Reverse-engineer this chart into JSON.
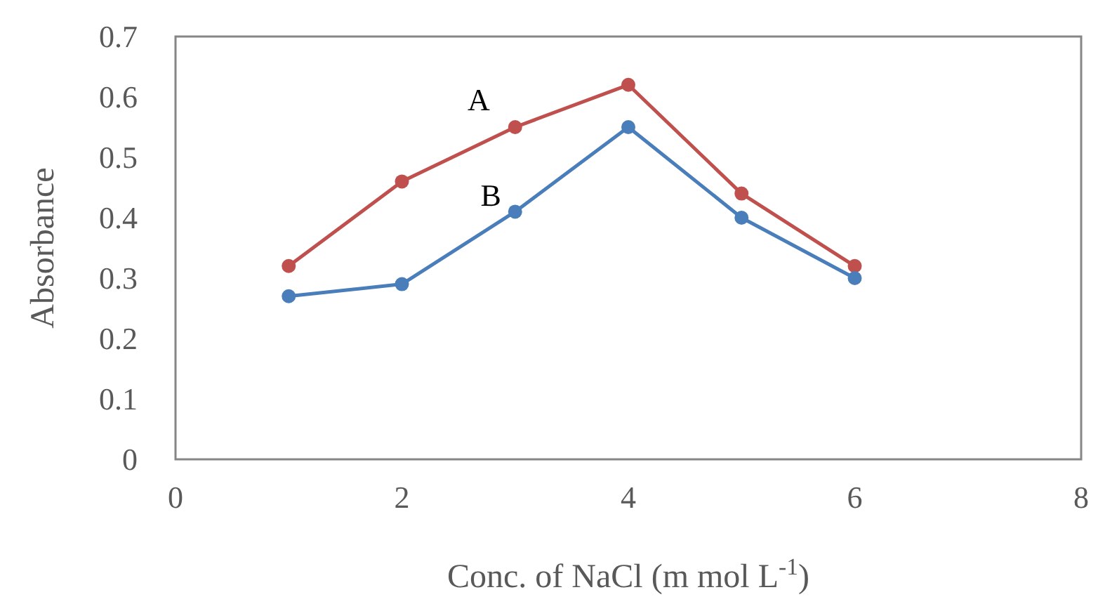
{
  "chart_data": {
    "type": "line",
    "xlabel": "Conc. of NaCl (m mol L$^{-1}$)",
    "ylabel": "Absorbance",
    "x": [
      1,
      2,
      3,
      4,
      5,
      6
    ],
    "series": [
      {
        "name": "A",
        "color": "#c0504d",
        "values": [
          0.32,
          0.46,
          0.55,
          0.62,
          0.44,
          0.32
        ]
      },
      {
        "name": "B",
        "color": "#4a7ebb",
        "values": [
          0.27,
          0.29,
          0.41,
          0.55,
          0.4,
          0.3
        ]
      }
    ],
    "xlim": [
      0,
      8
    ],
    "xticks": [
      0,
      2,
      4,
      6,
      8
    ],
    "ylim": [
      0,
      0.7
    ],
    "yticks": [
      0,
      0.1,
      0.2,
      0.3,
      0.4,
      0.5,
      0.6,
      0.7
    ],
    "grid": false,
    "marker": "circle",
    "line_style": "solid"
  }
}
